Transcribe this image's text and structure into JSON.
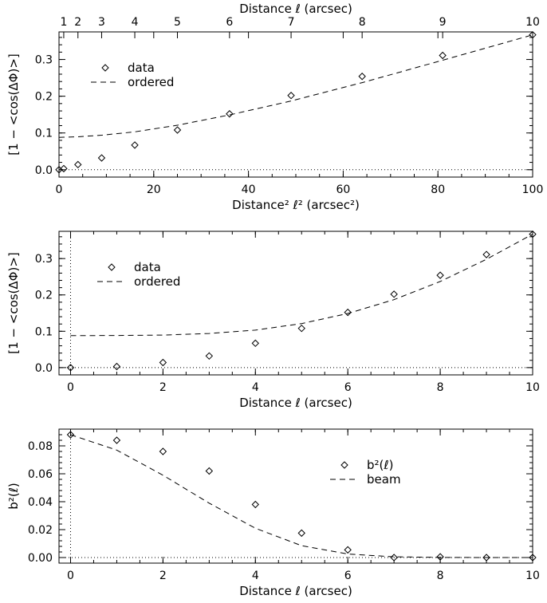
{
  "chart_data": [
    {
      "type": "scatter",
      "x_axis": {
        "label": "Distance² ℓ² (arcsec²)",
        "range": [
          0,
          100
        ],
        "ticks": [
          0,
          20,
          40,
          60,
          80,
          100
        ],
        "tick_labels": [
          "0",
          "20",
          "40",
          "60",
          "80",
          "100"
        ]
      },
      "top_axis": {
        "label": "Distance ℓ (arcsec)",
        "ticks_at_sq": [
          1,
          4,
          9,
          16,
          25,
          36,
          49,
          64,
          81,
          100
        ],
        "tick_labels": [
          "1",
          "2",
          "3",
          "4",
          "5",
          "6",
          "7",
          "8",
          "9",
          "10"
        ]
      },
      "y_axis": {
        "label": "[1 − <cos(ΔΦ)>]",
        "range": [
          -0.02,
          0.375
        ],
        "ticks": [
          0,
          0.1,
          0.2,
          0.3
        ],
        "tick_labels": [
          "0.0",
          "0.1",
          "0.2",
          "0.3"
        ]
      },
      "series": [
        {
          "name": "data",
          "style": "diamond",
          "x": [
            0,
            1,
            4,
            9,
            16,
            25,
            36,
            49,
            64,
            81,
            100
          ],
          "y": [
            0.0,
            0.003,
            0.014,
            0.032,
            0.067,
            0.108,
            0.152,
            0.202,
            0.254,
            0.311,
            0.367
          ]
        },
        {
          "name": "ordered",
          "style": "dashed",
          "x": [
            0,
            1,
            4,
            9,
            16,
            25,
            36,
            49,
            64,
            81,
            100
          ],
          "y": [
            0.088,
            0.0885,
            0.0895,
            0.094,
            0.103,
            0.121,
            0.149,
            0.187,
            0.237,
            0.298,
            0.367
          ]
        }
      ],
      "reference_line": {
        "y": 0,
        "style": "dotted"
      },
      "legend_position": "upper-left"
    },
    {
      "type": "scatter",
      "x_axis": {
        "label": "Distance ℓ (arcsec)",
        "range": [
          -0.25,
          10
        ],
        "ticks": [
          0,
          2,
          4,
          6,
          8,
          10
        ],
        "tick_labels": [
          "0",
          "2",
          "4",
          "6",
          "8",
          "10"
        ]
      },
      "y_axis": {
        "label": "[1 − <cos(ΔΦ)>]",
        "range": [
          -0.02,
          0.375
        ],
        "ticks": [
          0,
          0.1,
          0.2,
          0.3
        ],
        "tick_labels": [
          "0.0",
          "0.1",
          "0.2",
          "0.3"
        ]
      },
      "series": [
        {
          "name": "data",
          "style": "diamond",
          "x": [
            0,
            1,
            2,
            3,
            4,
            5,
            6,
            7,
            8,
            9,
            10
          ],
          "y": [
            0.0,
            0.003,
            0.014,
            0.032,
            0.067,
            0.108,
            0.152,
            0.202,
            0.254,
            0.311,
            0.367
          ]
        },
        {
          "name": "ordered",
          "style": "dashed",
          "x": [
            0,
            1,
            2,
            3,
            4,
            5,
            6,
            7,
            8,
            9,
            10
          ],
          "y": [
            0.088,
            0.0885,
            0.0895,
            0.094,
            0.103,
            0.121,
            0.149,
            0.187,
            0.237,
            0.298,
            0.367
          ]
        }
      ],
      "reference_lines": [
        {
          "y": 0,
          "style": "dotted"
        },
        {
          "x": 0,
          "style": "dotted"
        }
      ],
      "legend_position": "upper-left"
    },
    {
      "type": "scatter",
      "x_axis": {
        "label": "Distance ℓ (arcsec)",
        "range": [
          -0.25,
          10
        ],
        "ticks": [
          0,
          2,
          4,
          6,
          8,
          10
        ],
        "tick_labels": [
          "0",
          "2",
          "4",
          "6",
          "8",
          "10"
        ]
      },
      "y_axis": {
        "label": "b²(ℓ)",
        "range": [
          -0.004,
          0.092
        ],
        "ticks": [
          0,
          0.02,
          0.04,
          0.06,
          0.08
        ],
        "tick_labels": [
          "0.00",
          "0.02",
          "0.04",
          "0.06",
          "0.08"
        ]
      },
      "series": [
        {
          "name": "b²(ℓ)",
          "style": "diamond",
          "x": [
            0,
            1,
            2,
            3,
            4,
            5,
            6,
            7,
            8,
            9,
            10
          ],
          "y": [
            0.088,
            0.084,
            0.076,
            0.062,
            0.038,
            0.0175,
            0.0055,
            0.0,
            0.0005,
            0.0,
            0.0
          ]
        },
        {
          "name": "beam",
          "style": "dashed",
          "x": [
            0,
            1,
            2,
            3,
            4,
            5,
            6,
            7,
            8,
            9,
            10
          ],
          "y": [
            0.088,
            0.077,
            0.059,
            0.039,
            0.021,
            0.0085,
            0.0025,
            0.0005,
            0.0001,
            0.0,
            0.0
          ]
        }
      ],
      "reference_lines": [
        {
          "y": 0,
          "style": "dotted"
        },
        {
          "x": 0,
          "style": "dotted"
        }
      ],
      "legend_position": "right"
    }
  ]
}
